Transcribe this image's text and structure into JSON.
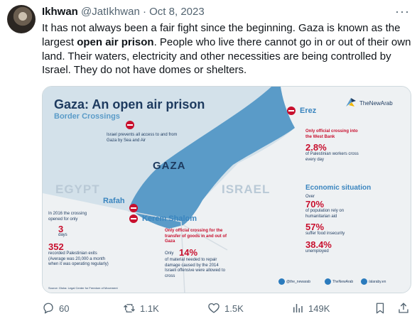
{
  "author": {
    "name": "Ikhwan",
    "handle": "@JatIkhwan",
    "separator": "·",
    "date": "Oct 8, 2023"
  },
  "more_label": "···",
  "tweet": {
    "part1": "It has not always been a fair fight since the beginning. Gaza is known as the largest ",
    "bold": "open air prison",
    "part2": ". People who live there cannot go in or out of their own land. Their waters, electricity and other necessities are being controlled by Israel. They do not have domes or shelters."
  },
  "infographic": {
    "title": "Gaza: An open air prison",
    "subtitle": "Border Crossings",
    "brand": "TheNewArab",
    "regions": {
      "gaza": "GAZA",
      "egypt": "EGYPT",
      "israel": "ISRAEL"
    },
    "sea_air_note": "Israel prevents all access to and from Gaza by Sea and Air",
    "erez": {
      "label": "Erez",
      "note": "Only official crossing into the West Bank",
      "stat": "2.8%",
      "stat_note": "of Palestinian workers cross every day"
    },
    "rafah": {
      "label": "Rafah",
      "note1": "In 2016 the crossing opened for only",
      "days": "3",
      "days_label": "days",
      "exits": "352",
      "exits_note": "recorded Palestinian exits (Average was 20,000 a month when it was operating regularly)"
    },
    "kerem_shalom": {
      "label": "Kerem Shalom",
      "note": "Only official crossing for the transfer of goods in and out of Gaza",
      "only": "Only",
      "stat": "14%",
      "stat_note": "of material needed to repair damage caused by the 2014 Israeli offensive were allowed to cross"
    },
    "economic": {
      "heading": "Economic situation",
      "over": "Over",
      "aid_stat": "70%",
      "aid_note": "of population rely on humanitarian aid",
      "food_stat": "57%",
      "food_note": "suffer food insecurity",
      "unemp_stat": "38.4%",
      "unemp_note": "unemployed"
    },
    "source": "Source: Gisha: Legal Center for Freedom of Movement",
    "social": {
      "twitter": "@the_newarab",
      "facebook": "TheNewArab",
      "web": "/alaraby.en"
    },
    "colors": {
      "sea": "#d3e1ea",
      "gaza": "#5a9bc8",
      "land": "#eef1f3",
      "accent_red": "#c8102e",
      "navy": "#1d3a5f"
    }
  },
  "actions": {
    "replies": "60",
    "reposts": "1.1K",
    "likes": "1.5K",
    "views": "149K"
  }
}
